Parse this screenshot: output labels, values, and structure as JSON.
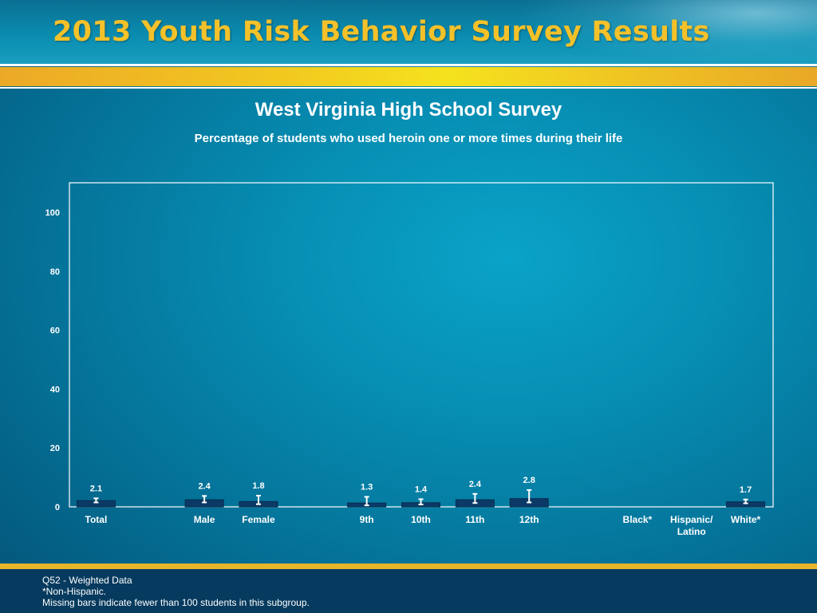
{
  "header": {
    "title": "2013 Youth Risk Behavior Survey Results"
  },
  "colors": {
    "bar": "#0b3a66",
    "bar_edge": "#062c4f",
    "error_bar": "#ffffff",
    "text": "#ffffff",
    "gold": "#f2c21f"
  },
  "chart_data": {
    "type": "bar",
    "title": "West Virginia High School Survey",
    "subtitle": "Percentage of students who used heroin one or more times during their life",
    "xlabel": "",
    "ylabel": "",
    "ylim": [
      0,
      110
    ],
    "yticks": [
      0,
      20,
      40,
      60,
      80,
      100
    ],
    "grid": false,
    "categories": [
      "Total",
      "",
      "Male",
      "Female",
      "",
      "9th",
      "10th",
      "11th",
      "12th",
      "",
      "Black*",
      "Hispanic/\nLatino",
      "White*"
    ],
    "values": [
      2.1,
      null,
      2.4,
      1.8,
      null,
      1.3,
      1.4,
      2.4,
      2.8,
      null,
      null,
      null,
      1.7
    ],
    "value_labels": [
      "2.1",
      "",
      "2.4",
      "1.8",
      "",
      "1.3",
      "1.4",
      "2.4",
      "2.8",
      "",
      "",
      "",
      "1.7"
    ],
    "ci_lower": [
      1.5,
      null,
      1.5,
      0.9,
      null,
      0.5,
      0.8,
      1.3,
      1.5,
      null,
      null,
      null,
      1.2
    ],
    "ci_upper": [
      2.9,
      null,
      3.7,
      3.8,
      null,
      3.4,
      2.6,
      4.4,
      5.7,
      null,
      null,
      null,
      2.5
    ]
  },
  "footer": {
    "question": "Q52 - Weighted Data",
    "note1": "*Non-Hispanic.",
    "note2": "Missing bars indicate fewer than 100 students in this subgroup."
  }
}
